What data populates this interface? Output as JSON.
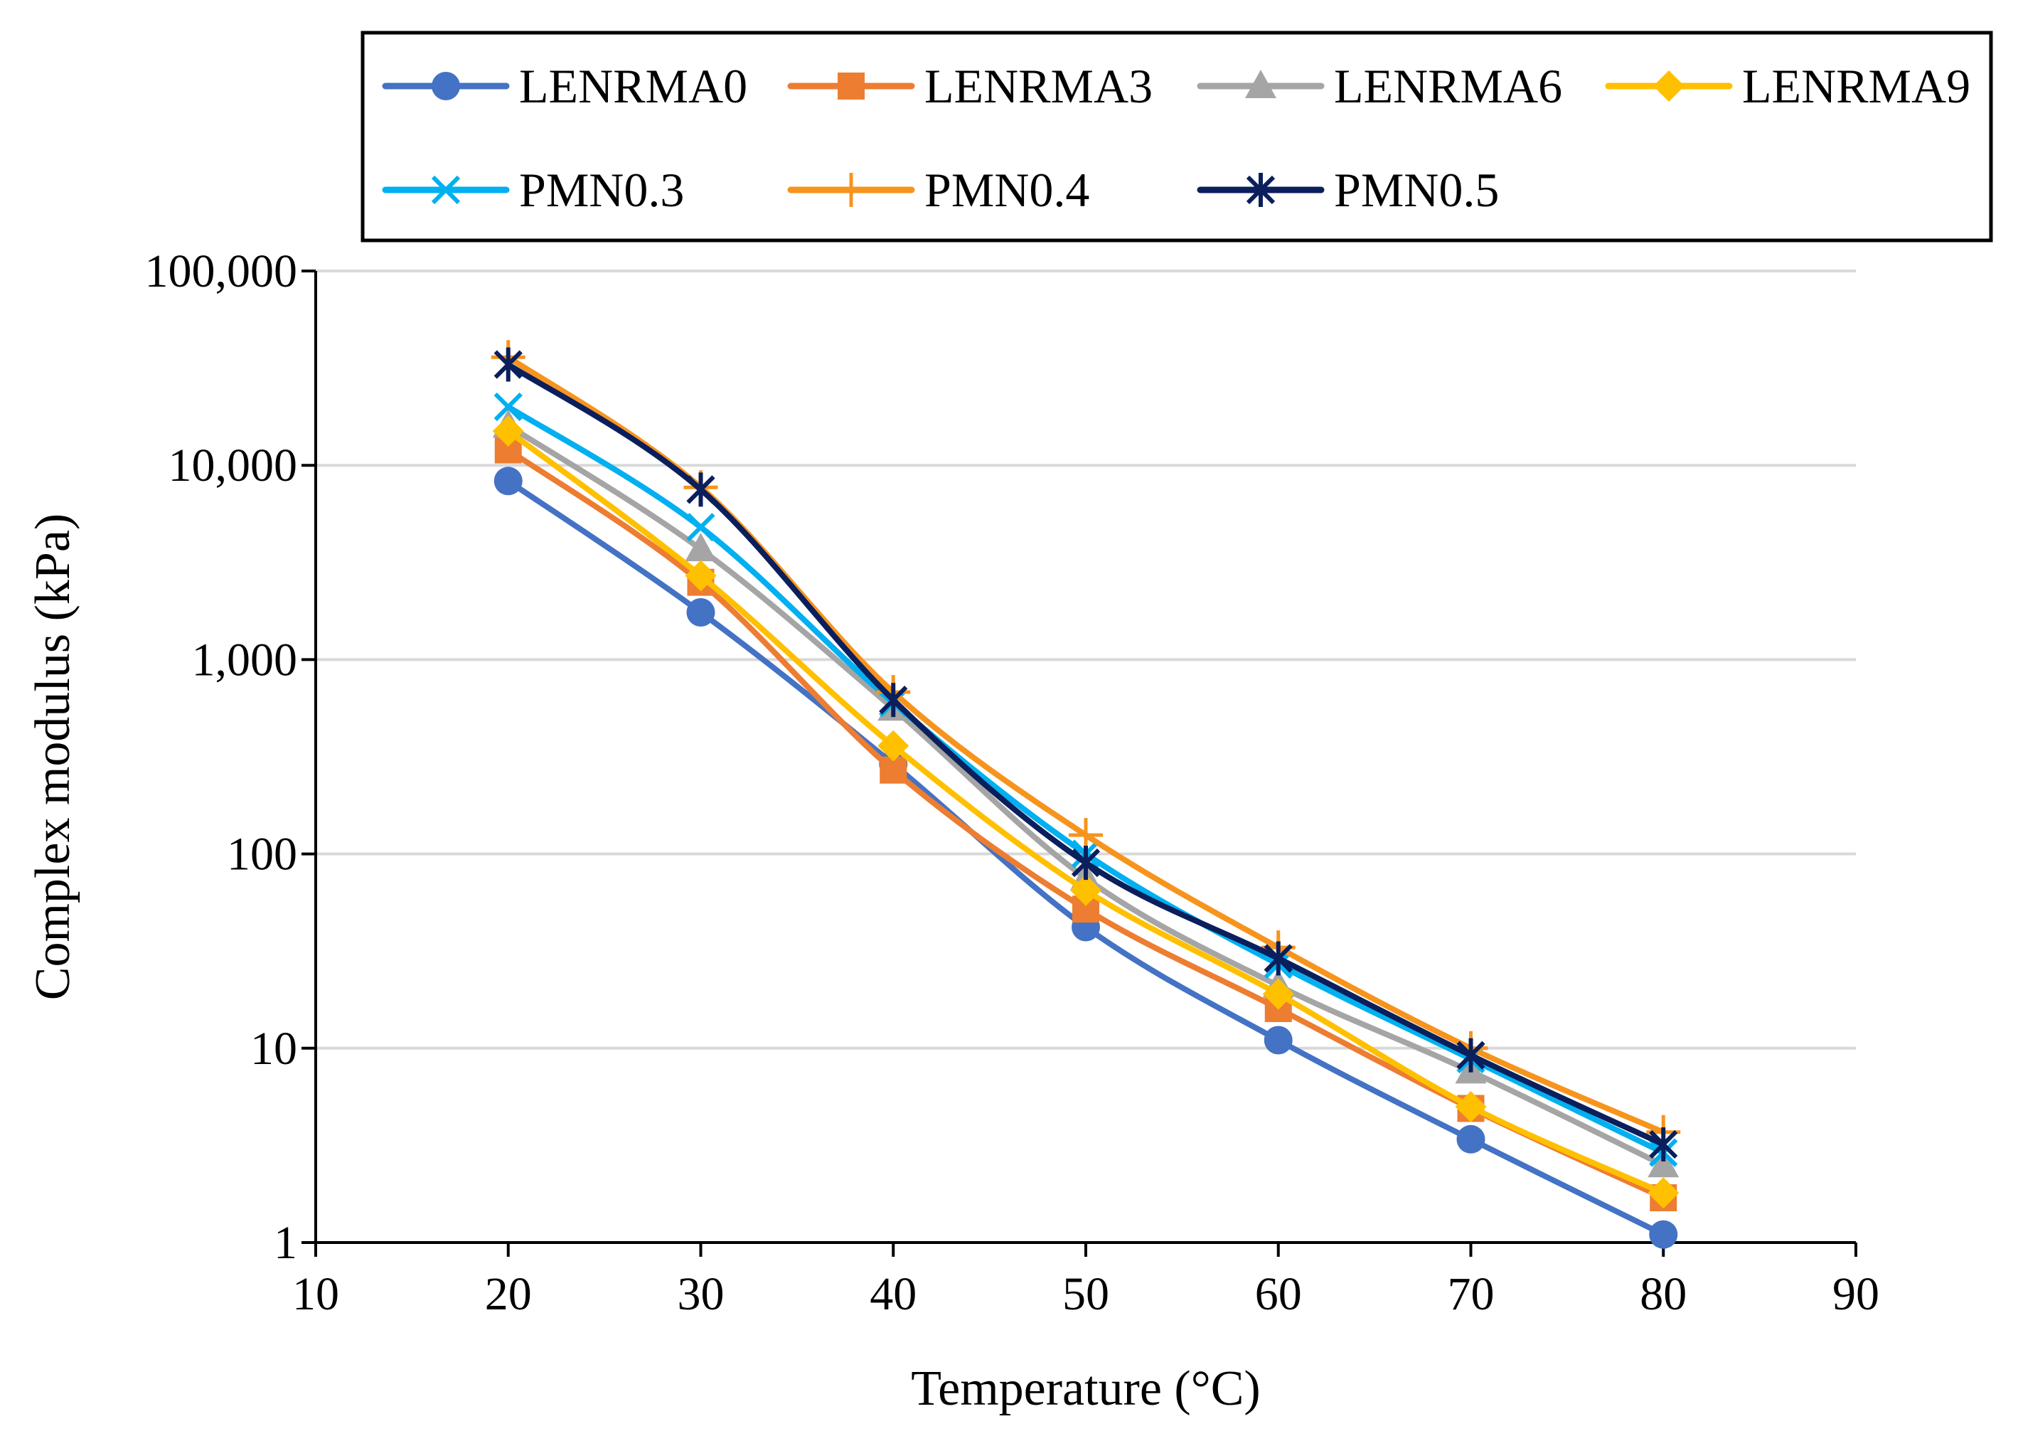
{
  "chart_data": {
    "type": "line",
    "title": "",
    "xlabel": "Temperature (°C)",
    "ylabel": "Complex modulus (kPa)",
    "xlim": [
      10,
      90
    ],
    "ylim": [
      1,
      100000
    ],
    "yscale": "log",
    "x_ticks": [
      10,
      20,
      30,
      40,
      50,
      60,
      70,
      80,
      90
    ],
    "x_tick_labels": [
      "10",
      "20",
      "30",
      "40",
      "50",
      "60",
      "70",
      "80",
      "90"
    ],
    "y_ticks": [
      1,
      10,
      100,
      1000,
      10000,
      100000
    ],
    "y_tick_labels": [
      "1",
      "10",
      "100",
      "1,000",
      "10,000",
      "100,000"
    ],
    "grid": "horizontal",
    "legend_position": "top",
    "x": [
      20,
      30,
      40,
      50,
      60,
      70,
      80
    ],
    "series": [
      {
        "name": "LENRMA0",
        "color": "#4472C4",
        "marker": "circle",
        "values": [
          8300,
          1750,
          290,
          42,
          11,
          3.4,
          1.1
        ]
      },
      {
        "name": "LENRMA3",
        "color": "#ED7D31",
        "marker": "square",
        "values": [
          12000,
          2500,
          270,
          52,
          16,
          4.9,
          1.7
        ]
      },
      {
        "name": "LENRMA6",
        "color": "#A5A5A5",
        "marker": "triangle",
        "values": [
          16000,
          3700,
          560,
          75,
          21,
          7.6,
          2.5
        ]
      },
      {
        "name": "LENRMA9",
        "color": "#FFC000",
        "marker": "diamond",
        "values": [
          15000,
          2700,
          360,
          65,
          19,
          5.0,
          1.8
        ]
      },
      {
        "name": "PMN0.3",
        "color": "#00B0F0",
        "marker": "x",
        "values": [
          20000,
          4800,
          600,
          100,
          27,
          8.8,
          2.9
        ]
      },
      {
        "name": "PMN0.4",
        "color": "#F7941D",
        "marker": "plus",
        "values": [
          36000,
          7700,
          680,
          125,
          33,
          10,
          3.7
        ]
      },
      {
        "name": "PMN0.5",
        "color": "#0B1F5C",
        "marker": "star",
        "values": [
          33000,
          7500,
          620,
          90,
          29,
          9.2,
          3.2
        ]
      }
    ]
  }
}
